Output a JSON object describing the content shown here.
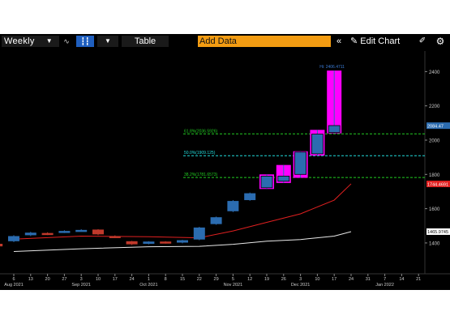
{
  "toolbar": {
    "period_label": "Weekly",
    "table_label": "Table",
    "add_data_label": "Add Data",
    "edit_chart_label": "Edit Chart",
    "icons": [
      "dropdown-caret-icon",
      "line-chart-icon",
      "candlestick-icon",
      "chevron-down-icon",
      "rewind-icon",
      "pencil-icon",
      "draw-icon",
      "gear-icon"
    ]
  },
  "colors": {
    "background": "#000000",
    "up_bar": "#2b6cb0",
    "down_bar": "#c0392b",
    "highlight": "#ff00ff",
    "ma_short": "#e02020",
    "ma_long": "#e8e8e8",
    "fib_green": "#22cc22",
    "fib_cyan": "#22dddd",
    "accent": "#f39c12",
    "active_button": "#1f5fbf"
  },
  "chart_data": {
    "type": "candlestick",
    "ylim": [
      1220,
      2520
    ],
    "y_ticks": [
      1400,
      1600,
      1800,
      2000,
      2200,
      2400
    ],
    "y_tick_labels": [
      "1400",
      "1600",
      "1800",
      "2000",
      "2200",
      "2400"
    ],
    "x_ticks": [
      {
        "day": "6",
        "month": "Aug 2021"
      },
      {
        "day": "13",
        "month": ""
      },
      {
        "day": "20",
        "month": ""
      },
      {
        "day": "27",
        "month": ""
      },
      {
        "day": "3",
        "month": "Sep 2021"
      },
      {
        "day": "10",
        "month": ""
      },
      {
        "day": "17",
        "month": ""
      },
      {
        "day": "24",
        "month": ""
      },
      {
        "day": "1",
        "month": "Oct 2021"
      },
      {
        "day": "8",
        "month": ""
      },
      {
        "day": "15",
        "month": ""
      },
      {
        "day": "22",
        "month": ""
      },
      {
        "day": "29",
        "month": ""
      },
      {
        "day": "5",
        "month": "Nov 2021"
      },
      {
        "day": "12",
        "month": ""
      },
      {
        "day": "19",
        "month": ""
      },
      {
        "day": "26",
        "month": ""
      },
      {
        "day": "3",
        "month": "Dec 2021"
      },
      {
        "day": "10",
        "month": ""
      },
      {
        "day": "17",
        "month": ""
      },
      {
        "day": "24",
        "month": ""
      },
      {
        "day": "31",
        "month": ""
      },
      {
        "day": "7",
        "month": "Jan 2022"
      },
      {
        "day": "14",
        "month": ""
      },
      {
        "day": "21",
        "month": ""
      }
    ],
    "candles": [
      {
        "date": "Jul 30",
        "open": 1395,
        "close": 1380,
        "high": 1400,
        "low": 1375
      },
      {
        "date": "Aug 6",
        "open": 1410,
        "close": 1440,
        "high": 1445,
        "low": 1405
      },
      {
        "date": "Aug 13",
        "open": 1445,
        "close": 1460,
        "high": 1465,
        "low": 1440
      },
      {
        "date": "Aug 20",
        "open": 1458,
        "close": 1450,
        "high": 1462,
        "low": 1446
      },
      {
        "date": "Aug 27",
        "open": 1462,
        "close": 1470,
        "high": 1474,
        "low": 1458
      },
      {
        "date": "Sep 3",
        "open": 1470,
        "close": 1476,
        "high": 1480,
        "low": 1466
      },
      {
        "date": "Sep 10",
        "open": 1478,
        "close": 1450,
        "high": 1480,
        "low": 1446
      },
      {
        "date": "Sep 17",
        "open": 1440,
        "close": 1432,
        "high": 1444,
        "low": 1428
      },
      {
        "date": "Sep 24",
        "open": 1410,
        "close": 1392,
        "high": 1412,
        "low": 1388
      },
      {
        "date": "Oct 1",
        "open": 1395,
        "close": 1408,
        "high": 1410,
        "low": 1392
      },
      {
        "date": "Oct 8",
        "open": 1408,
        "close": 1400,
        "high": 1410,
        "low": 1396
      },
      {
        "date": "Oct 15",
        "open": 1402,
        "close": 1416,
        "high": 1418,
        "low": 1398
      },
      {
        "date": "Oct 22",
        "open": 1420,
        "close": 1490,
        "high": 1494,
        "low": 1416
      },
      {
        "date": "Oct 29",
        "open": 1510,
        "close": 1550,
        "high": 1554,
        "low": 1506
      },
      {
        "date": "Nov 5",
        "open": 1585,
        "close": 1645,
        "high": 1650,
        "low": 1580
      },
      {
        "date": "Nov 12",
        "open": 1650,
        "close": 1690,
        "high": 1694,
        "low": 1646
      },
      {
        "date": "Nov 19",
        "open": 1722,
        "close": 1790,
        "high": 1800,
        "low": 1715
      },
      {
        "date": "Nov 26",
        "open": 1760,
        "close": 1790,
        "high": 1855,
        "low": 1750
      },
      {
        "date": "Dec 3",
        "open": 1800,
        "close": 1930,
        "high": 1935,
        "low": 1780
      },
      {
        "date": "Dec 10",
        "open": 1920,
        "close": 2035,
        "high": 2060,
        "low": 1910
      },
      {
        "date": "Dec 17",
        "open": 2045,
        "close": 2085,
        "high": 2406,
        "low": 2040
      }
    ],
    "highlighted_candles": [
      "Nov 19",
      "Nov 26",
      "Dec 3",
      "Dec 10",
      "Dec 17"
    ],
    "moving_averages": [
      {
        "color": "#e02020",
        "points": [
          [
            0,
            1422
          ],
          [
            4,
            1440
          ],
          [
            8,
            1436
          ],
          [
            11,
            1430
          ],
          [
            13,
            1470
          ],
          [
            15,
            1520
          ],
          [
            17,
            1570
          ],
          [
            19,
            1650
          ],
          [
            20,
            1745
          ]
        ]
      },
      {
        "color": "#e8e8e8",
        "points": [
          [
            0,
            1350
          ],
          [
            4,
            1366
          ],
          [
            8,
            1378
          ],
          [
            11,
            1380
          ],
          [
            13,
            1392
          ],
          [
            15,
            1410
          ],
          [
            17,
            1420
          ],
          [
            19,
            1440
          ],
          [
            20,
            1466
          ]
        ]
      }
    ],
    "fib_levels": [
      {
        "label": "61.8%(2036.5926)",
        "value": 2036.59,
        "color": "#22cc22"
      },
      {
        "label": "50.0%(1909.125)",
        "value": 1909.13,
        "color": "#22dddd"
      },
      {
        "label": "38.2%(1781.6573)",
        "value": 1781.66,
        "color": "#22cc22"
      }
    ],
    "high_label": "Hi: 2406.4711",
    "price_tags": [
      {
        "label": "2084.47",
        "value": 2084.47,
        "bg": "#2b6cb0",
        "fg": "#ffffff"
      },
      {
        "label": "1744.4691",
        "value": 1744.47,
        "bg": "#e02020",
        "fg": "#ffffff"
      },
      {
        "label": "1465.9745",
        "value": 1465.97,
        "bg": "#ffffff",
        "fg": "#000000"
      }
    ]
  }
}
